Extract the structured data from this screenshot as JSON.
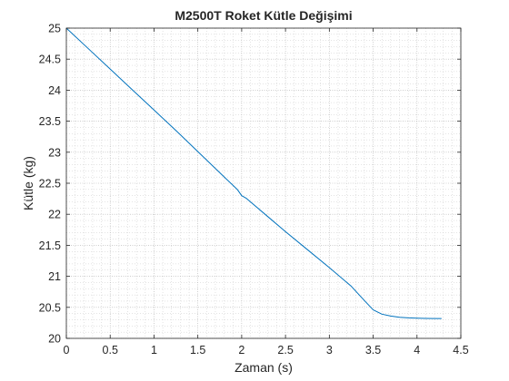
{
  "chart_data": {
    "type": "line",
    "title": "M2500T Roket Kütle Değişimi",
    "xlabel": "Zaman (s)",
    "ylabel": "Kütle (kg)",
    "xlim": [
      0,
      4.5
    ],
    "ylim": [
      20,
      25
    ],
    "xticks": [
      0,
      0.5,
      1,
      1.5,
      2,
      2.5,
      3,
      3.5,
      4,
      4.5
    ],
    "xtick_labels": [
      "0",
      "0.5",
      "1",
      "1.5",
      "2",
      "2.5",
      "3",
      "3.5",
      "4",
      "4.5"
    ],
    "yticks": [
      20,
      20.5,
      21,
      21.5,
      22,
      22.5,
      23,
      23.5,
      24,
      24.5,
      25
    ],
    "ytick_labels": [
      "20",
      "20.5",
      "21",
      "21.5",
      "22",
      "22.5",
      "23",
      "23.5",
      "24",
      "24.5",
      "25"
    ],
    "grid": true,
    "minor_grid": true,
    "series": [
      {
        "color": "#0072bd",
        "x": [
          0,
          0.25,
          0.5,
          0.75,
          1.0,
          1.25,
          1.5,
          1.75,
          1.95,
          2.0,
          2.05,
          2.1,
          2.3,
          2.5,
          2.75,
          3.0,
          3.25,
          3.4,
          3.5,
          3.6,
          3.7,
          3.8,
          3.9,
          4.0,
          4.1,
          4.2,
          4.28
        ],
        "y": [
          25.0,
          24.67,
          24.34,
          24.01,
          23.68,
          23.35,
          23.01,
          22.67,
          22.4,
          22.3,
          22.26,
          22.2,
          21.96,
          21.72,
          21.43,
          21.14,
          20.84,
          20.61,
          20.46,
          20.39,
          20.36,
          20.34,
          20.33,
          20.325,
          20.322,
          20.32,
          20.32
        ]
      }
    ]
  }
}
